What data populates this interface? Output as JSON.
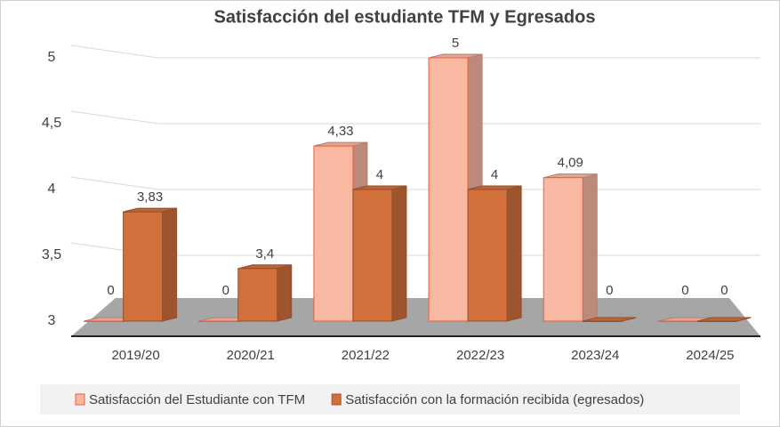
{
  "chart_data": {
    "type": "bar3d",
    "title": "Satisfacción del estudiante TFM y Egresados",
    "categories": [
      "2019/20",
      "2020/21",
      "2021/22",
      "2022/23",
      "2023/24",
      "2024/25"
    ],
    "series": [
      {
        "name": "Satisfacción del Estudiante con TFM",
        "color": "#f9b8a2",
        "values": [
          0,
          0,
          4.33,
          5,
          4.09,
          0
        ],
        "value_labels": [
          "0",
          "0",
          "4,33",
          "5",
          "4,09",
          "0"
        ]
      },
      {
        "name": "Satisfacción con la formación recibida (egresados)",
        "color": "#d2703c",
        "values": [
          3.83,
          3.4,
          4,
          4,
          0,
          0
        ],
        "value_labels": [
          "3,83",
          "3,4",
          "4",
          "4",
          "0",
          "0"
        ]
      }
    ],
    "ylim": [
      3,
      5
    ],
    "yticks": [
      3,
      {
        "value": 3.5,
        "label": "3,5"
      },
      4,
      {
        "value": 4.5,
        "label": "4,5"
      },
      5
    ],
    "grid": true,
    "legend": "bottom"
  }
}
